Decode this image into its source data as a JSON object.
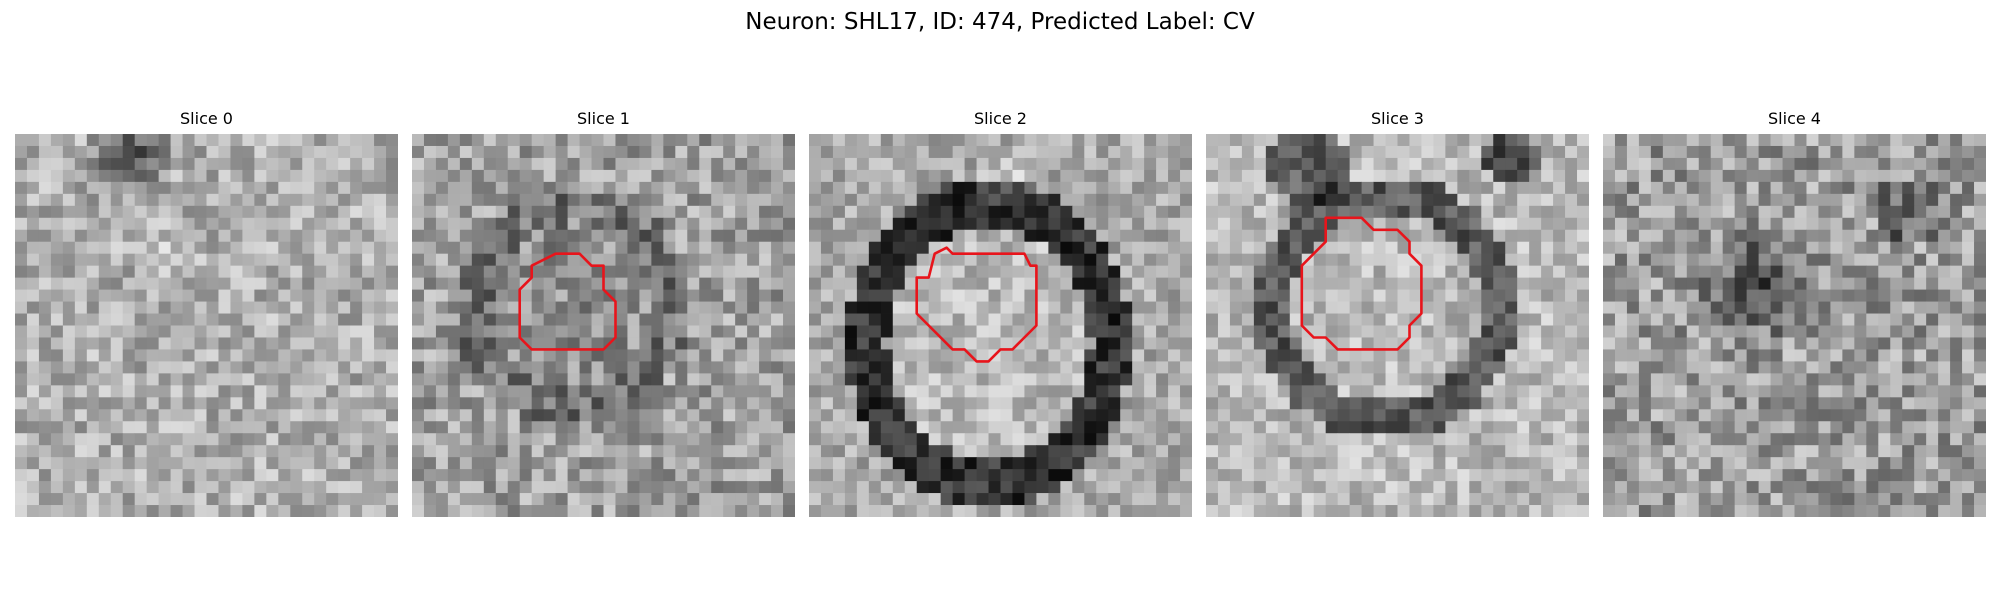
{
  "figure": {
    "title": "Neuron: SHL17, ID: 474, Predicted Label: CV"
  },
  "colors": {
    "background": "#ffffff",
    "contour": "#e8141b",
    "colormap": "grayscale"
  },
  "slices": [
    {
      "title": "Slice 0",
      "has_contour": false
    },
    {
      "title": "Slice 1",
      "has_contour": true
    },
    {
      "title": "Slice 2",
      "has_contour": true
    },
    {
      "title": "Slice 3",
      "has_contour": true
    },
    {
      "title": "Slice 4",
      "has_contour": false
    }
  ]
}
